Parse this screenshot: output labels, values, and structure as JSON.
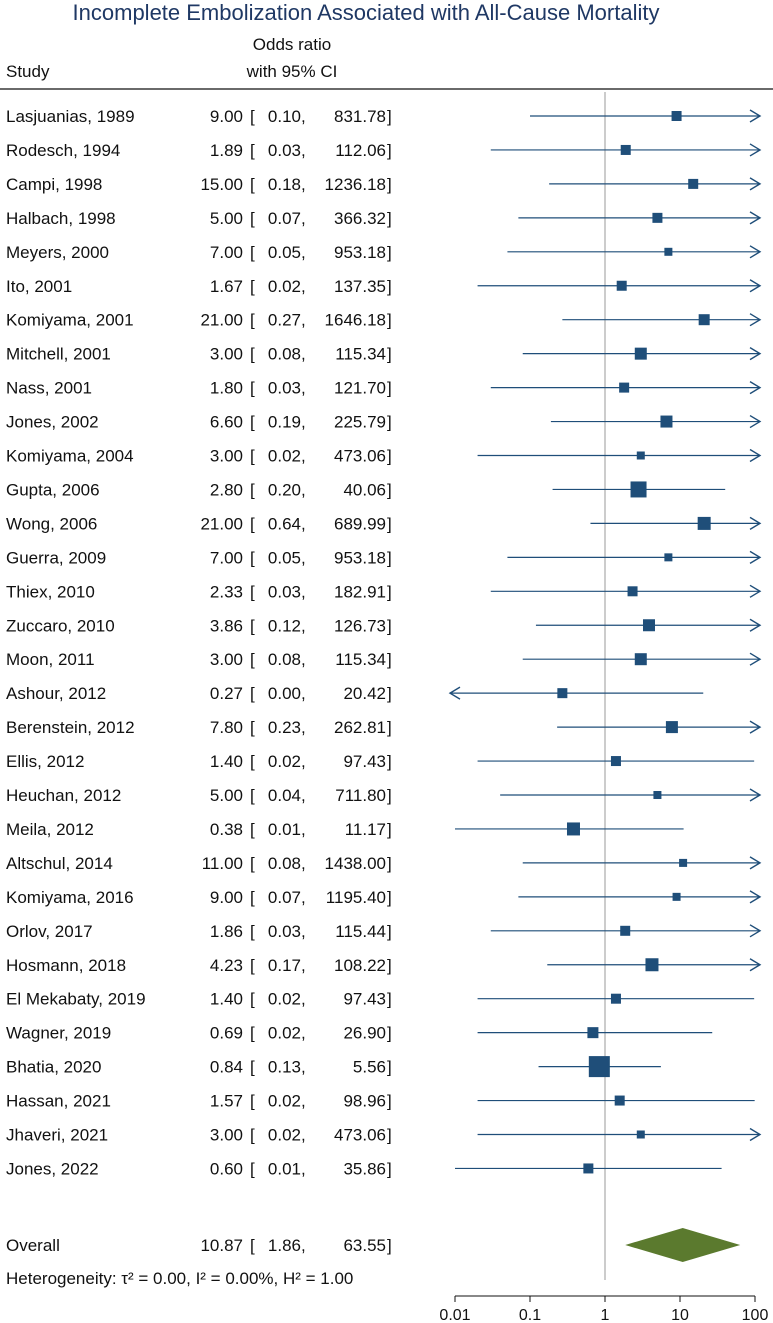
{
  "chart_data": {
    "type": "forest",
    "title": "Incomplete Embolization Associated with All-Cause Mortality",
    "header": {
      "study": "Study",
      "or_line1": "Odds ratio",
      "or_line2": "with 95% CI"
    },
    "x_scale": "log",
    "x_range": [
      0.01,
      100
    ],
    "x_ticks": [
      "0.01",
      "0.1",
      "1",
      "10",
      "100"
    ],
    "x_tick_values": [
      0.01,
      0.1,
      1,
      10,
      100
    ],
    "reference_line": 1,
    "studies": [
      {
        "label": "Lasjuanias, 1989",
        "or": "9.00",
        "lo": "0.10",
        "hi": "831.78",
        "or_v": 9.0,
        "lo_v": 0.1,
        "hi_v": 831.78,
        "weight": 1.0
      },
      {
        "label": "Rodesch, 1994",
        "or": "1.89",
        "lo": "0.03",
        "hi": "112.06",
        "or_v": 1.89,
        "lo_v": 0.03,
        "hi_v": 112.06,
        "weight": 1.0
      },
      {
        "label": "Campi, 1998",
        "or": "15.00",
        "lo": "0.18",
        "hi": "1236.18",
        "or_v": 15.0,
        "lo_v": 0.18,
        "hi_v": 1236.18,
        "weight": 1.0
      },
      {
        "label": "Halbach, 1998",
        "or": "5.00",
        "lo": "0.07",
        "hi": "366.32",
        "or_v": 5.0,
        "lo_v": 0.07,
        "hi_v": 366.32,
        "weight": 1.0
      },
      {
        "label": "Meyers, 2000",
        "or": "7.00",
        "lo": "0.05",
        "hi": "953.18",
        "or_v": 7.0,
        "lo_v": 0.05,
        "hi_v": 953.18,
        "weight": 0.8
      },
      {
        "label": "Ito, 2001",
        "or": "1.67",
        "lo": "0.02",
        "hi": "137.35",
        "or_v": 1.67,
        "lo_v": 0.02,
        "hi_v": 137.35,
        "weight": 1.0
      },
      {
        "label": "Komiyama, 2001",
        "or": "21.00",
        "lo": "0.27",
        "hi": "1646.18",
        "or_v": 21.0,
        "lo_v": 0.27,
        "hi_v": 1646.18,
        "weight": 1.1
      },
      {
        "label": "Mitchell, 2001",
        "or": "3.00",
        "lo": "0.08",
        "hi": "115.34",
        "or_v": 3.0,
        "lo_v": 0.08,
        "hi_v": 115.34,
        "weight": 1.2
      },
      {
        "label": "Nass, 2001",
        "or": "1.80",
        "lo": "0.03",
        "hi": "121.70",
        "or_v": 1.8,
        "lo_v": 0.03,
        "hi_v": 121.7,
        "weight": 1.0
      },
      {
        "label": "Jones, 2002",
        "or": "6.60",
        "lo": "0.19",
        "hi": "225.79",
        "or_v": 6.6,
        "lo_v": 0.19,
        "hi_v": 225.79,
        "weight": 1.2
      },
      {
        "label": "Komiyama, 2004",
        "or": "3.00",
        "lo": "0.02",
        "hi": "473.06",
        "or_v": 3.0,
        "lo_v": 0.02,
        "hi_v": 473.06,
        "weight": 0.8
      },
      {
        "label": "Gupta, 2006",
        "or": "2.80",
        "lo": "0.20",
        "hi": "40.06",
        "or_v": 2.8,
        "lo_v": 0.2,
        "hi_v": 40.06,
        "weight": 1.6
      },
      {
        "label": "Wong, 2006",
        "or": "21.00",
        "lo": "0.64",
        "hi": "689.99",
        "or_v": 21.0,
        "lo_v": 0.64,
        "hi_v": 689.99,
        "weight": 1.3
      },
      {
        "label": "Guerra, 2009",
        "or": "7.00",
        "lo": "0.05",
        "hi": "953.18",
        "or_v": 7.0,
        "lo_v": 0.05,
        "hi_v": 953.18,
        "weight": 0.8
      },
      {
        "label": "Thiex, 2010",
        "or": "2.33",
        "lo": "0.03",
        "hi": "182.91",
        "or_v": 2.33,
        "lo_v": 0.03,
        "hi_v": 182.91,
        "weight": 1.0
      },
      {
        "label": "Zuccaro, 2010",
        "or": "3.86",
        "lo": "0.12",
        "hi": "126.73",
        "or_v": 3.86,
        "lo_v": 0.12,
        "hi_v": 126.73,
        "weight": 1.2
      },
      {
        "label": "Moon, 2011",
        "or": "3.00",
        "lo": "0.08",
        "hi": "115.34",
        "or_v": 3.0,
        "lo_v": 0.08,
        "hi_v": 115.34,
        "weight": 1.2
      },
      {
        "label": "Ashour, 2012",
        "or": "0.27",
        "lo": "0.00",
        "hi": "20.42",
        "or_v": 0.27,
        "lo_v": 0.0,
        "hi_v": 20.42,
        "weight": 1.0
      },
      {
        "label": "Berenstein, 2012",
        "or": "7.80",
        "lo": "0.23",
        "hi": "262.81",
        "or_v": 7.8,
        "lo_v": 0.23,
        "hi_v": 262.81,
        "weight": 1.2
      },
      {
        "label": "Ellis, 2012",
        "or": "1.40",
        "lo": "0.02",
        "hi": "97.43",
        "or_v": 1.4,
        "lo_v": 0.02,
        "hi_v": 97.43,
        "weight": 1.0
      },
      {
        "label": "Heuchan, 2012",
        "or": "5.00",
        "lo": "0.04",
        "hi": "711.80",
        "or_v": 5.0,
        "lo_v": 0.04,
        "hi_v": 711.8,
        "weight": 0.8
      },
      {
        "label": "Meila, 2012",
        "or": "0.38",
        "lo": "0.01",
        "hi": "11.17",
        "or_v": 0.38,
        "lo_v": 0.01,
        "hi_v": 11.17,
        "weight": 1.3
      },
      {
        "label": "Altschul, 2014",
        "or": "11.00",
        "lo": "0.08",
        "hi": "1438.00",
        "or_v": 11.0,
        "lo_v": 0.08,
        "hi_v": 1438.0,
        "weight": 0.8
      },
      {
        "label": "Komiyama, 2016",
        "or": "9.00",
        "lo": "0.07",
        "hi": "1195.40",
        "or_v": 9.0,
        "lo_v": 0.07,
        "hi_v": 1195.4,
        "weight": 0.8
      },
      {
        "label": "Orlov, 2017",
        "or": "1.86",
        "lo": "0.03",
        "hi": "115.44",
        "or_v": 1.86,
        "lo_v": 0.03,
        "hi_v": 115.44,
        "weight": 1.0
      },
      {
        "label": "Hosmann, 2018",
        "or": "4.23",
        "lo": "0.17",
        "hi": "108.22",
        "or_v": 4.23,
        "lo_v": 0.17,
        "hi_v": 108.22,
        "weight": 1.3
      },
      {
        "label": "El Mekabaty, 2019",
        "or": "1.40",
        "lo": "0.02",
        "hi": "97.43",
        "or_v": 1.4,
        "lo_v": 0.02,
        "hi_v": 97.43,
        "weight": 1.0
      },
      {
        "label": "Wagner, 2019",
        "or": "0.69",
        "lo": "0.02",
        "hi": "26.90",
        "or_v": 0.69,
        "lo_v": 0.02,
        "hi_v": 26.9,
        "weight": 1.1
      },
      {
        "label": "Bhatia, 2020",
        "or": "0.84",
        "lo": "0.13",
        "hi": "5.56",
        "or_v": 0.84,
        "lo_v": 0.13,
        "hi_v": 5.56,
        "weight": 2.1
      },
      {
        "label": "Hassan, 2021",
        "or": "1.57",
        "lo": "0.02",
        "hi": "98.96",
        "or_v": 1.57,
        "lo_v": 0.02,
        "hi_v": 98.96,
        "weight": 1.0
      },
      {
        "label": "Jhaveri, 2021",
        "or": "3.00",
        "lo": "0.02",
        "hi": "473.06",
        "or_v": 3.0,
        "lo_v": 0.02,
        "hi_v": 473.06,
        "weight": 0.8
      },
      {
        "label": "Jones, 2022",
        "or": "0.60",
        "lo": "0.01",
        "hi": "35.86",
        "or_v": 0.6,
        "lo_v": 0.01,
        "hi_v": 35.86,
        "weight": 1.0
      }
    ],
    "overall": {
      "label": "Overall",
      "or": "10.87",
      "lo": "1.86",
      "hi": "63.55",
      "or_v": 10.87,
      "lo_v": 1.86,
      "hi_v": 63.55
    },
    "heterogeneity": "Heterogeneity: τ² = 0.00, I² = 0.00%, H² = 1.00",
    "colors": {
      "marker": "#1f4e79",
      "line": "#1f4e79",
      "diamond": "#5b7a2e",
      "title": "#1f3864",
      "ref": "#9a9a9a"
    }
  }
}
